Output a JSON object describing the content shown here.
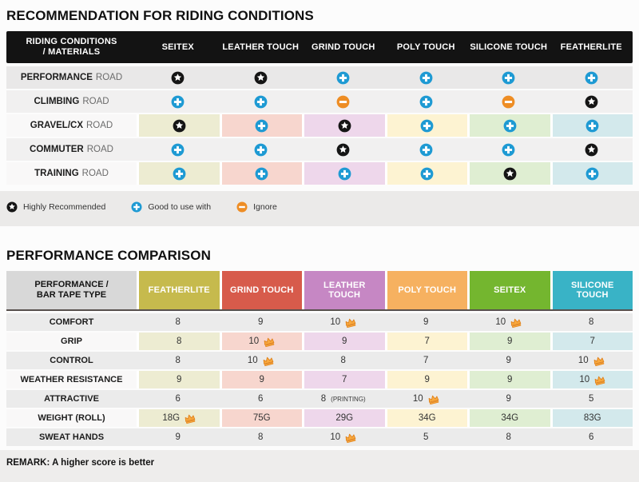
{
  "palette": {
    "tints": [
      "#edecd2",
      "#f7d6ce",
      "#eed7eb",
      "#fdf3d2",
      "#dfeed2",
      "#d3e9ec"
    ],
    "row_gray": "#e9e8e8",
    "row_gray_alt": "#f1f0f0",
    "row_light": "#f9f8f8",
    "row_gray2": "#ebebeb",
    "header_black": "#131313",
    "corner2_gray": "#d8d8d8",
    "icon_star": "#151515",
    "icon_plus": "#1e9ad3",
    "icon_minus": "#ee8d24",
    "crown": "#f8a93f",
    "crown_stroke": "#e0821c"
  },
  "chart_data": [
    {
      "type": "table",
      "title": "RECOMMENDATION FOR RIDING CONDITIONS",
      "corner_header": "RIDING CONDITIONS / MATERIALS",
      "columns": [
        "SEITEX",
        "LEATHER TOUCH",
        "GRIND TOUCH",
        "POLY TOUCH",
        "SILICONE TOUCH",
        "FEATHERLITE"
      ],
      "rows": [
        {
          "label": "PERFORMANCE",
          "suffix": "ROAD",
          "tinted": false,
          "values": [
            "star",
            "star",
            "plus",
            "plus",
            "plus",
            "plus"
          ]
        },
        {
          "label": "CLIMBING",
          "suffix": "ROAD",
          "tinted": false,
          "values": [
            "plus",
            "plus",
            "minus",
            "plus",
            "minus",
            "star"
          ]
        },
        {
          "label": "GRAVEL/CX",
          "suffix": "ROAD",
          "tinted": true,
          "values": [
            "star",
            "plus",
            "star",
            "plus",
            "plus",
            "plus"
          ]
        },
        {
          "label": "COMMUTER",
          "suffix": "ROAD",
          "tinted": false,
          "values": [
            "plus",
            "plus",
            "star",
            "plus",
            "plus",
            "star"
          ]
        },
        {
          "label": "TRAINING",
          "suffix": "ROAD",
          "tinted": true,
          "values": [
            "plus",
            "plus",
            "plus",
            "plus",
            "star",
            "plus"
          ]
        }
      ],
      "legend": [
        {
          "icon": "star",
          "label": "Highly Recommended"
        },
        {
          "icon": "plus",
          "label": "Good to use with"
        },
        {
          "icon": "minus",
          "label": "Ignore"
        }
      ]
    },
    {
      "type": "table",
      "title": "PERFORMANCE COMPARISON",
      "corner_header": "PERFORMANCE / BAR TAPE TYPE",
      "columns": [
        {
          "name": "FEATHERLITE",
          "color": "#c6ba4d"
        },
        {
          "name": "GRIND TOUCH",
          "color": "#d75b4b"
        },
        {
          "name": "LEATHER TOUCH",
          "color": "#c687c4"
        },
        {
          "name": "POLY TOUCH",
          "color": "#f6b160"
        },
        {
          "name": "SEITEX",
          "color": "#74b62f"
        },
        {
          "name": "SILICONE TOUCH",
          "color": "#39b3c6"
        }
      ],
      "rows": [
        {
          "label": "COMFORT",
          "tinted": false,
          "values": [
            {
              "v": "8"
            },
            {
              "v": "9"
            },
            {
              "v": "10",
              "crown": true
            },
            {
              "v": "9"
            },
            {
              "v": "10",
              "crown": true
            },
            {
              "v": "8"
            }
          ]
        },
        {
          "label": "GRIP",
          "tinted": true,
          "values": [
            {
              "v": "8"
            },
            {
              "v": "10",
              "crown": true
            },
            {
              "v": "9"
            },
            {
              "v": "7"
            },
            {
              "v": "9"
            },
            {
              "v": "7"
            }
          ]
        },
        {
          "label": "CONTROL",
          "tinted": false,
          "values": [
            {
              "v": "8"
            },
            {
              "v": "10",
              "crown": true
            },
            {
              "v": "8"
            },
            {
              "v": "7"
            },
            {
              "v": "9"
            },
            {
              "v": "10",
              "crown": true
            }
          ]
        },
        {
          "label": "WEATHER RESISTANCE",
          "tinted": true,
          "values": [
            {
              "v": "9"
            },
            {
              "v": "9"
            },
            {
              "v": "7"
            },
            {
              "v": "9"
            },
            {
              "v": "9"
            },
            {
              "v": "10",
              "crown": true
            }
          ]
        },
        {
          "label": "ATTRACTIVE",
          "tinted": false,
          "values": [
            {
              "v": "6"
            },
            {
              "v": "6"
            },
            {
              "v": "8",
              "note": "(PRINTING)"
            },
            {
              "v": "10",
              "crown": true
            },
            {
              "v": "9"
            },
            {
              "v": "5"
            }
          ]
        },
        {
          "label": "WEIGHT (ROLL)",
          "tinted": true,
          "values": [
            {
              "v": "18G",
              "crown": true
            },
            {
              "v": "75G"
            },
            {
              "v": "29G"
            },
            {
              "v": "34G"
            },
            {
              "v": "34G"
            },
            {
              "v": "83G"
            }
          ]
        },
        {
          "label": "SWEAT HANDS",
          "tinted": false,
          "values": [
            {
              "v": "9"
            },
            {
              "v": "8"
            },
            {
              "v": "10",
              "crown": true
            },
            {
              "v": "5"
            },
            {
              "v": "8"
            },
            {
              "v": "6"
            }
          ]
        }
      ],
      "remark": "REMARK: A higher score is better"
    }
  ]
}
